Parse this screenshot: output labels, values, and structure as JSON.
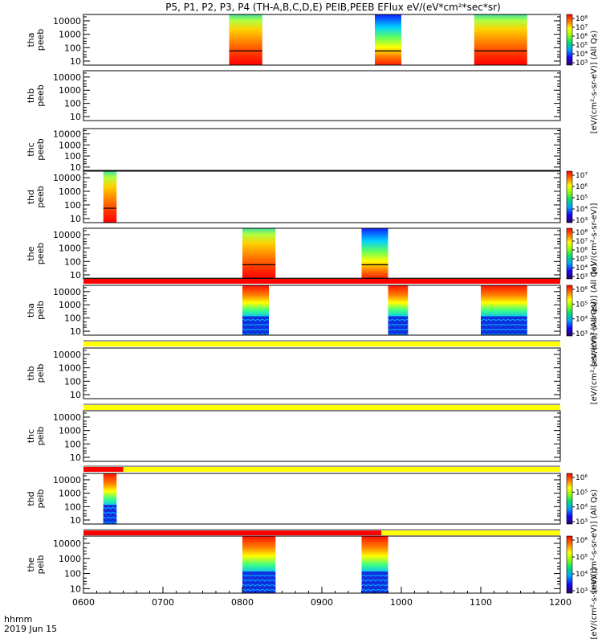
{
  "title": "P5, P1, P2, P3, P4 (TH-A,B,C,D,E) PEIB,PEEB EFlux eV/(eV*cm²*sec*sr)",
  "footer": {
    "time_label": "hhmm",
    "date_label": "2019 Jun 15"
  },
  "xaxis": {
    "tick_labels": [
      "0600",
      "0700",
      "0800",
      "0900",
      "1000",
      "1100",
      "1200"
    ],
    "range": [
      "0600",
      "1200"
    ]
  },
  "yaxis": {
    "tick_labels": [
      "10",
      "100",
      "1000",
      "10000"
    ],
    "scale": "log",
    "range_eV": [
      5,
      30000
    ]
  },
  "colorbar_titles": {
    "eflux_full": "[eV/(cm²-s-sr-eV)] (All Qs)",
    "eflux_short": "[eV/(cm²-s-sr-eV)]",
    "eflux_alt": "[eV/(cm²-s-sr-eV)] (All Qs)"
  },
  "chart_data": [
    {
      "type": "heatmap",
      "panel": "tha peeb",
      "ylabel": "tha peeb",
      "colorbar_ticks": [
        "10⁸",
        "10⁷",
        "10⁶",
        "10⁵",
        "10⁴",
        "10³"
      ],
      "data_intervals": [
        [
          "0750",
          "0815"
        ],
        [
          "0940",
          "1000"
        ],
        [
          "1055",
          "1135"
        ]
      ]
    },
    {
      "type": "heatmap",
      "panel": "thb peeb",
      "ylabel": "thb peeb",
      "colorbar_ticks": [],
      "data_intervals": []
    },
    {
      "type": "heatmap",
      "panel": "thc peeb",
      "ylabel": "thc peeb",
      "colorbar_ticks": [],
      "data_intervals": []
    },
    {
      "type": "heatmap",
      "panel": "thd peeb",
      "ylabel": "thd peeb",
      "colorbar_ticks": [
        "10⁷",
        "10⁶",
        "10⁵",
        "10⁴",
        "10³"
      ],
      "data_intervals": [
        [
          "0615",
          "0625"
        ]
      ]
    },
    {
      "type": "heatmap",
      "panel": "the peeb",
      "ylabel": "the peeb",
      "colorbar_ticks": [
        "10⁸",
        "10⁷",
        "10⁶",
        "10⁵",
        "10⁴",
        "10³"
      ],
      "data_intervals": [
        [
          "0800",
          "0825"
        ],
        [
          "0930",
          "0950"
        ]
      ]
    },
    {
      "type": "heatmap",
      "panel": "tha peib",
      "ylabel": "tha peib",
      "colorbar_ticks": [
        "10⁶",
        "10⁵",
        "10⁴",
        "10³"
      ],
      "data_intervals": [
        [
          "0800",
          "0820"
        ],
        [
          "0950",
          "1005"
        ],
        [
          "1100",
          "1135"
        ]
      ]
    },
    {
      "type": "heatmap",
      "panel": "thb peib",
      "ylabel": "thb peib",
      "colorbar_ticks": [],
      "data_intervals": []
    },
    {
      "type": "heatmap",
      "panel": "thc peib",
      "ylabel": "thc peib",
      "colorbar_ticks": [],
      "data_intervals": []
    },
    {
      "type": "heatmap",
      "panel": "thd peib",
      "ylabel": "thd peib",
      "colorbar_ticks": [
        "10⁶",
        "10⁵",
        "10⁴",
        "10³"
      ],
      "data_intervals": [
        [
          "0615",
          "0625"
        ]
      ]
    },
    {
      "type": "heatmap",
      "panel": "the peib",
      "ylabel": "the peib",
      "colorbar_ticks": [
        "10⁶",
        "10⁵",
        "10⁴",
        "10³"
      ],
      "data_intervals": [
        [
          "0800",
          "0825"
        ],
        [
          "0930",
          "0950"
        ]
      ]
    }
  ],
  "status_bars": [
    {
      "position": "above tha peib",
      "segments": [
        {
          "from": "0600",
          "to": "1200",
          "color": "#ff0000"
        }
      ]
    },
    {
      "position": "above thb peib",
      "segments": [
        {
          "from": "0600",
          "to": "1200",
          "color": "#ffff00"
        }
      ]
    },
    {
      "position": "above thc peib",
      "segments": [
        {
          "from": "0600",
          "to": "1200",
          "color": "#ffff00"
        }
      ]
    },
    {
      "position": "above thd peib",
      "segments": [
        {
          "from": "0600",
          "to": "0630",
          "color": "#ff0000"
        },
        {
          "from": "0630",
          "to": "1200",
          "color": "#ffff00"
        }
      ]
    },
    {
      "position": "above the peib",
      "segments": [
        {
          "from": "0600",
          "to": "0945",
          "color": "#ff0000"
        },
        {
          "from": "0945",
          "to": "1200",
          "color": "#ffff00"
        }
      ]
    }
  ],
  "colors": {
    "axis": "#000000",
    "background": "#ffffff",
    "status_red": "#ff0000",
    "status_yellow": "#ffff00"
  }
}
